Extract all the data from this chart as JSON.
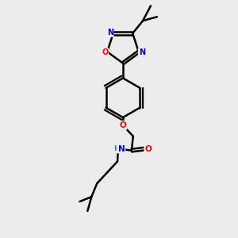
{
  "bg_color": "#ebebeb",
  "atom_colors": {
    "C": "#000000",
    "N": "#0000cc",
    "O": "#ff0000",
    "H": "#3a8a8a"
  },
  "bond_color": "#000000",
  "bond_width": 1.8,
  "figsize": [
    3.0,
    3.0
  ],
  "dpi": 100
}
